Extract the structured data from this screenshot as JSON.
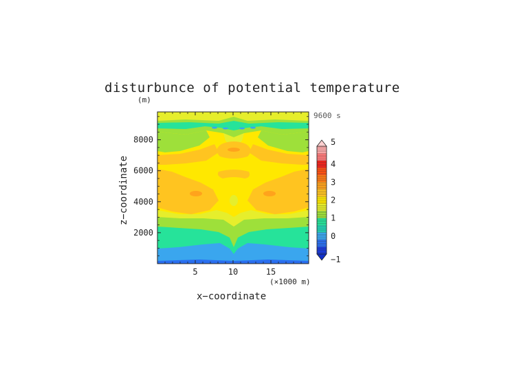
{
  "chart_data": {
    "type": "heatmap",
    "title": "disturbunce of potential temperature",
    "y_unit_label": "(m)",
    "time_label": "9600 s",
    "xlabel": "x−coordinate",
    "ylabel": "z−coordinate",
    "x_unit_label": "(×1000 m)",
    "xlim": [
      0,
      20
    ],
    "ylim": [
      0,
      9800
    ],
    "x_ticks": [
      "5",
      "10",
      "15"
    ],
    "x_tick_values": [
      5,
      10,
      15
    ],
    "y_ticks": [
      "2000",
      "4000",
      "6000",
      "8000"
    ],
    "y_tick_values": [
      2000,
      4000,
      6000,
      8000
    ],
    "colorbar": {
      "min": -1,
      "max": 5,
      "step": 0.5,
      "tick_labels": [
        "−1",
        "0",
        "1",
        "2",
        "3",
        "4",
        "5"
      ],
      "tick_values": [
        -1,
        0,
        1,
        2,
        3,
        4,
        5
      ],
      "colors": [
        "#1a3bdc",
        "#2a6ff0",
        "#3aa6ee",
        "#22d2b4",
        "#26e39a",
        "#9ee03a",
        "#e6ee2c",
        "#ffe800",
        "#ffc420",
        "#ffa31c",
        "#ff7a14",
        "#ff5012",
        "#f2241c",
        "#ff7a7a",
        "#ffaaaa"
      ],
      "over_color": "#ffd0d0",
      "under_color": "#1030c8"
    },
    "field_levels": [
      {
        "name": "level_0.5_to_1",
        "value": 0.75
      },
      {
        "name": "level_1_to_1.5",
        "value": 1.25
      },
      {
        "name": "level_1.5_to_2",
        "value": 1.75
      },
      {
        "name": "level_2_to_2.5",
        "value": 2.25
      },
      {
        "name": "level_2.5_to_3",
        "value": 2.75
      }
    ]
  }
}
